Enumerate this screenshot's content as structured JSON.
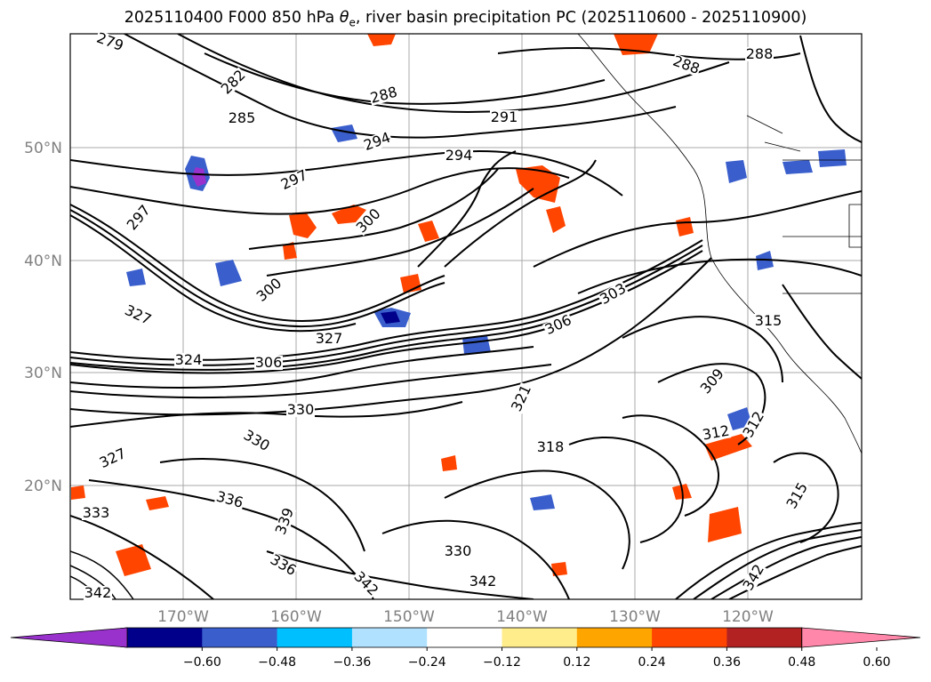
{
  "figure": {
    "title_prefix": "2025110400 F000 850 hPa ",
    "title_symbol": "θ",
    "title_subscript": "e",
    "title_suffix": ", river basin precipitation PC (2025110600 - 2025110900)"
  },
  "map": {
    "lat_labels": [
      "50°N",
      "40°N",
      "30°N",
      "20°N"
    ],
    "lon_labels": [
      "170°W",
      "160°W",
      "150°W",
      "140°W",
      "130°W",
      "120°W"
    ],
    "contour_labels": [
      "279",
      "282",
      "285",
      "288",
      "288",
      "288",
      "291",
      "294",
      "294",
      "297",
      "297",
      "300",
      "300",
      "303",
      "306",
      "306",
      "309",
      "312",
      "312",
      "315",
      "315",
      "318",
      "321",
      "324",
      "327",
      "327",
      "327",
      "330",
      "330",
      "330",
      "333",
      "336",
      "336",
      "339",
      "342",
      "342",
      "342",
      "342"
    ]
  },
  "colorbar": {
    "ticks": [
      "−0.60",
      "−0.48",
      "−0.36",
      "−0.24",
      "−0.12",
      "0.12",
      "0.24",
      "0.36",
      "0.48",
      "0.60"
    ],
    "colors": [
      "#9932cc",
      "#00008b",
      "#3a5fcd",
      "#00bfff",
      "#b0e2ff",
      "#ffffff",
      "#ffec8b",
      "#ffa500",
      "#ff4500",
      "#b22222",
      "#ff88aa"
    ]
  }
}
